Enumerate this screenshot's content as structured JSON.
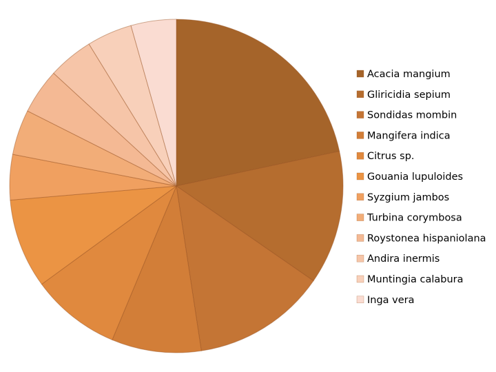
{
  "chart_data": {
    "type": "pie",
    "categories": [
      "Acacia mangium",
      "Gliricidia sepium",
      "Sondidas mombin",
      "Mangifera indica",
      "Citrus sp.",
      "Gouania lupuloides",
      "Syzgium jambos",
      "Turbina corymbosa",
      "Roystonea hispaniolana",
      "Andira inermis",
      "Muntingia calabura",
      "Inga vera"
    ],
    "values": [
      21.7,
      13,
      13,
      8.7,
      8.7,
      8.7,
      4.4,
      4.4,
      4.4,
      4.4,
      4.4,
      4.4
    ],
    "colors": [
      "#a5642a",
      "#b56d2f",
      "#c47535",
      "#d27e38",
      "#e0893e",
      "#eb9444",
      "#f0a060",
      "#f2ad78",
      "#f4b994",
      "#f6c5a8",
      "#f8d0ba",
      "#fadcd2"
    ],
    "legend": "right"
  }
}
